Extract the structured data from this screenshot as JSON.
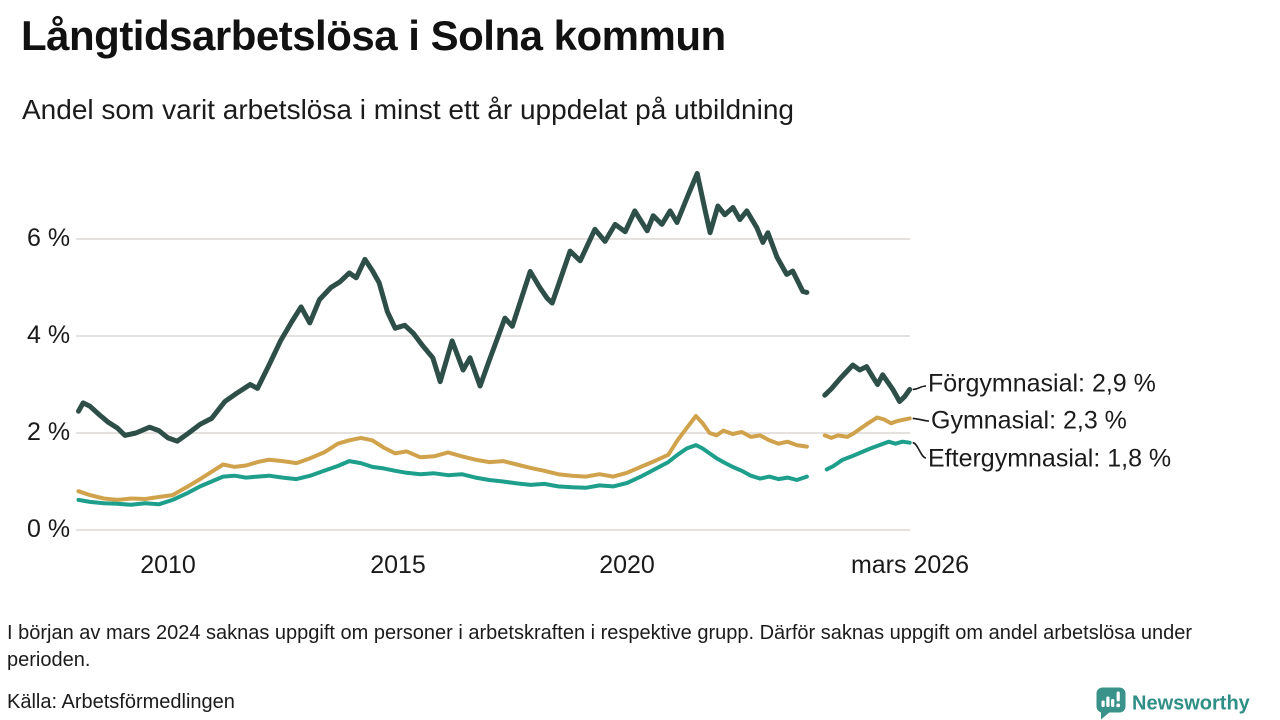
{
  "header": {
    "title": "Långtidsarbetslösa i Solna kommun",
    "subtitle": "Andel som varit arbetslösa i minst ett år uppdelat på utbildning"
  },
  "theme": {
    "background": "#ffffff",
    "text_color": "#1a1a1a",
    "gridline_color": "#e5e1de",
    "leader_line_color": "#1b1b1b",
    "brand_color": "#35918a"
  },
  "chart_data": {
    "type": "line",
    "title": "Långtidsarbetslösa i Solna kommun",
    "subtitle": "Andel som varit arbetslösa i minst ett år uppdelat på utbildning",
    "unit": "%",
    "grid": "horizontal-only",
    "y_axis": {
      "range": [
        0,
        7.5
      ],
      "ticks": [
        {
          "value": 0,
          "label": "0 %"
        },
        {
          "value": 2,
          "label": "2 %"
        },
        {
          "value": 4,
          "label": "4 %"
        },
        {
          "value": 6,
          "label": "6 %"
        }
      ]
    },
    "x_axis": {
      "range_years": [
        2008.0,
        2026.17
      ],
      "ticks": [
        {
          "year": 2010,
          "label": "2010"
        },
        {
          "year": 2015,
          "label": "2015"
        },
        {
          "year": 2020,
          "label": "2020"
        },
        {
          "year": 2026.17,
          "label": "mars 2026"
        }
      ]
    },
    "data_gap_years": [
      2023.92,
      2024.31
    ],
    "series": [
      {
        "name": "Förgymnasial",
        "color": "#2d4f47",
        "latest_value": "2,9 %",
        "end_label": "Förgymnasial: 2,9 %",
        "points_pre_gap": [
          [
            2008.05,
            2.45
          ],
          [
            2008.15,
            2.62
          ],
          [
            2008.3,
            2.55
          ],
          [
            2008.5,
            2.38
          ],
          [
            2008.7,
            2.22
          ],
          [
            2008.9,
            2.1
          ],
          [
            2009.06,
            1.95
          ],
          [
            2009.3,
            2.0
          ],
          [
            2009.6,
            2.12
          ],
          [
            2009.8,
            2.05
          ],
          [
            2010.0,
            1.9
          ],
          [
            2010.2,
            1.83
          ],
          [
            2010.45,
            2.0
          ],
          [
            2010.7,
            2.18
          ],
          [
            2010.95,
            2.3
          ],
          [
            2011.24,
            2.65
          ],
          [
            2011.5,
            2.82
          ],
          [
            2011.79,
            3.0
          ],
          [
            2011.95,
            2.92
          ],
          [
            2012.2,
            3.4
          ],
          [
            2012.45,
            3.9
          ],
          [
            2012.7,
            4.3
          ],
          [
            2012.9,
            4.6
          ],
          [
            2013.09,
            4.27
          ],
          [
            2013.3,
            4.75
          ],
          [
            2013.55,
            5.0
          ],
          [
            2013.75,
            5.12
          ],
          [
            2013.95,
            5.3
          ],
          [
            2014.1,
            5.2
          ],
          [
            2014.29,
            5.58
          ],
          [
            2014.45,
            5.35
          ],
          [
            2014.6,
            5.1
          ],
          [
            2014.78,
            4.5
          ],
          [
            2014.95,
            4.16
          ],
          [
            2015.16,
            4.22
          ],
          [
            2015.35,
            4.05
          ],
          [
            2015.55,
            3.8
          ],
          [
            2015.77,
            3.55
          ],
          [
            2015.93,
            3.06
          ],
          [
            2016.19,
            3.9
          ],
          [
            2016.43,
            3.3
          ],
          [
            2016.58,
            3.55
          ],
          [
            2016.8,
            2.97
          ],
          [
            2017.0,
            3.5
          ],
          [
            2017.34,
            4.37
          ],
          [
            2017.5,
            4.2
          ],
          [
            2017.89,
            5.33
          ],
          [
            2018.1,
            5.0
          ],
          [
            2018.26,
            4.78
          ],
          [
            2018.37,
            4.68
          ],
          [
            2018.76,
            5.75
          ],
          [
            2018.98,
            5.55
          ],
          [
            2019.3,
            6.2
          ],
          [
            2019.52,
            5.95
          ],
          [
            2019.74,
            6.3
          ],
          [
            2019.96,
            6.15
          ],
          [
            2020.17,
            6.58
          ],
          [
            2020.44,
            6.17
          ],
          [
            2020.57,
            6.48
          ],
          [
            2020.76,
            6.3
          ],
          [
            2020.94,
            6.58
          ],
          [
            2021.09,
            6.34
          ],
          [
            2021.33,
            6.9
          ],
          [
            2021.53,
            7.35
          ],
          [
            2021.7,
            6.6
          ],
          [
            2021.81,
            6.13
          ],
          [
            2021.98,
            6.68
          ],
          [
            2022.13,
            6.5
          ],
          [
            2022.31,
            6.65
          ],
          [
            2022.46,
            6.4
          ],
          [
            2022.61,
            6.58
          ],
          [
            2022.83,
            6.23
          ],
          [
            2022.96,
            5.93
          ],
          [
            2023.07,
            6.13
          ],
          [
            2023.27,
            5.62
          ],
          [
            2023.48,
            5.27
          ],
          [
            2023.61,
            5.34
          ],
          [
            2023.83,
            4.92
          ],
          [
            2023.92,
            4.9
          ]
        ],
        "points_post_gap": [
          [
            2024.31,
            2.78
          ],
          [
            2024.46,
            2.92
          ],
          [
            2024.64,
            3.12
          ],
          [
            2024.79,
            3.27
          ],
          [
            2024.92,
            3.4
          ],
          [
            2025.07,
            3.3
          ],
          [
            2025.22,
            3.37
          ],
          [
            2025.35,
            3.16
          ],
          [
            2025.46,
            3.0
          ],
          [
            2025.57,
            3.2
          ],
          [
            2025.79,
            2.9
          ],
          [
            2025.94,
            2.65
          ],
          [
            2026.05,
            2.75
          ],
          [
            2026.16,
            2.9
          ]
        ]
      },
      {
        "name": "Gymnasial",
        "color": "#d0a24c",
        "latest_value": "2,3 %",
        "end_label": "Gymnasial: 2,3 %",
        "points_pre_gap": [
          [
            2008.05,
            0.8
          ],
          [
            2008.3,
            0.72
          ],
          [
            2008.6,
            0.65
          ],
          [
            2008.9,
            0.62
          ],
          [
            2009.2,
            0.65
          ],
          [
            2009.5,
            0.64
          ],
          [
            2009.8,
            0.68
          ],
          [
            2010.1,
            0.72
          ],
          [
            2010.4,
            0.88
          ],
          [
            2010.7,
            1.05
          ],
          [
            2010.95,
            1.2
          ],
          [
            2011.2,
            1.35
          ],
          [
            2011.45,
            1.3
          ],
          [
            2011.7,
            1.33
          ],
          [
            2011.95,
            1.4
          ],
          [
            2012.2,
            1.45
          ],
          [
            2012.5,
            1.42
          ],
          [
            2012.8,
            1.38
          ],
          [
            2013.1,
            1.48
          ],
          [
            2013.4,
            1.6
          ],
          [
            2013.7,
            1.78
          ],
          [
            2013.95,
            1.85
          ],
          [
            2014.2,
            1.9
          ],
          [
            2014.45,
            1.85
          ],
          [
            2014.7,
            1.7
          ],
          [
            2014.95,
            1.58
          ],
          [
            2015.2,
            1.62
          ],
          [
            2015.5,
            1.5
          ],
          [
            2015.8,
            1.52
          ],
          [
            2016.1,
            1.6
          ],
          [
            2016.4,
            1.52
          ],
          [
            2016.7,
            1.45
          ],
          [
            2017.0,
            1.4
          ],
          [
            2017.3,
            1.42
          ],
          [
            2017.6,
            1.35
          ],
          [
            2017.9,
            1.28
          ],
          [
            2018.2,
            1.22
          ],
          [
            2018.5,
            1.15
          ],
          [
            2018.8,
            1.12
          ],
          [
            2019.1,
            1.1
          ],
          [
            2019.4,
            1.15
          ],
          [
            2019.7,
            1.1
          ],
          [
            2020.0,
            1.18
          ],
          [
            2020.3,
            1.3
          ],
          [
            2020.6,
            1.42
          ],
          [
            2020.9,
            1.55
          ],
          [
            2021.1,
            1.85
          ],
          [
            2021.3,
            2.1
          ],
          [
            2021.5,
            2.35
          ],
          [
            2021.65,
            2.2
          ],
          [
            2021.8,
            2.0
          ],
          [
            2021.95,
            1.95
          ],
          [
            2022.1,
            2.05
          ],
          [
            2022.3,
            1.98
          ],
          [
            2022.5,
            2.02
          ],
          [
            2022.7,
            1.92
          ],
          [
            2022.9,
            1.95
          ],
          [
            2023.1,
            1.85
          ],
          [
            2023.3,
            1.78
          ],
          [
            2023.5,
            1.82
          ],
          [
            2023.7,
            1.75
          ],
          [
            2023.92,
            1.72
          ]
        ],
        "points_post_gap": [
          [
            2024.31,
            1.95
          ],
          [
            2024.45,
            1.9
          ],
          [
            2024.6,
            1.95
          ],
          [
            2024.8,
            1.92
          ],
          [
            2024.95,
            2.0
          ],
          [
            2025.1,
            2.1
          ],
          [
            2025.25,
            2.2
          ],
          [
            2025.45,
            2.32
          ],
          [
            2025.6,
            2.28
          ],
          [
            2025.75,
            2.2
          ],
          [
            2025.9,
            2.25
          ],
          [
            2026.05,
            2.28
          ],
          [
            2026.16,
            2.3
          ]
        ]
      },
      {
        "name": "Eftergymnasial",
        "color": "#1d9f8c",
        "latest_value": "1,8 %",
        "end_label": "Eftergymnasial: 1,8 %",
        "points_pre_gap": [
          [
            2008.05,
            0.62
          ],
          [
            2008.3,
            0.58
          ],
          [
            2008.6,
            0.55
          ],
          [
            2008.9,
            0.54
          ],
          [
            2009.2,
            0.52
          ],
          [
            2009.5,
            0.55
          ],
          [
            2009.8,
            0.53
          ],
          [
            2010.1,
            0.62
          ],
          [
            2010.4,
            0.75
          ],
          [
            2010.7,
            0.9
          ],
          [
            2010.95,
            1.0
          ],
          [
            2011.2,
            1.1
          ],
          [
            2011.45,
            1.12
          ],
          [
            2011.7,
            1.08
          ],
          [
            2011.95,
            1.1
          ],
          [
            2012.2,
            1.12
          ],
          [
            2012.5,
            1.08
          ],
          [
            2012.8,
            1.05
          ],
          [
            2013.1,
            1.12
          ],
          [
            2013.4,
            1.22
          ],
          [
            2013.7,
            1.32
          ],
          [
            2013.95,
            1.42
          ],
          [
            2014.2,
            1.38
          ],
          [
            2014.45,
            1.3
          ],
          [
            2014.7,
            1.27
          ],
          [
            2014.95,
            1.22
          ],
          [
            2015.2,
            1.18
          ],
          [
            2015.5,
            1.15
          ],
          [
            2015.8,
            1.17
          ],
          [
            2016.1,
            1.13
          ],
          [
            2016.4,
            1.15
          ],
          [
            2016.7,
            1.08
          ],
          [
            2017.0,
            1.03
          ],
          [
            2017.3,
            1.0
          ],
          [
            2017.6,
            0.96
          ],
          [
            2017.9,
            0.93
          ],
          [
            2018.2,
            0.95
          ],
          [
            2018.5,
            0.9
          ],
          [
            2018.8,
            0.88
          ],
          [
            2019.1,
            0.87
          ],
          [
            2019.4,
            0.92
          ],
          [
            2019.7,
            0.9
          ],
          [
            2020.0,
            0.97
          ],
          [
            2020.3,
            1.1
          ],
          [
            2020.6,
            1.25
          ],
          [
            2020.9,
            1.4
          ],
          [
            2021.1,
            1.55
          ],
          [
            2021.3,
            1.68
          ],
          [
            2021.5,
            1.75
          ],
          [
            2021.65,
            1.68
          ],
          [
            2021.8,
            1.58
          ],
          [
            2021.95,
            1.48
          ],
          [
            2022.1,
            1.4
          ],
          [
            2022.3,
            1.3
          ],
          [
            2022.5,
            1.22
          ],
          [
            2022.7,
            1.12
          ],
          [
            2022.9,
            1.06
          ],
          [
            2023.1,
            1.1
          ],
          [
            2023.3,
            1.05
          ],
          [
            2023.5,
            1.08
          ],
          [
            2023.7,
            1.03
          ],
          [
            2023.92,
            1.1
          ]
        ],
        "points_post_gap": [
          [
            2024.35,
            1.25
          ],
          [
            2024.5,
            1.32
          ],
          [
            2024.7,
            1.45
          ],
          [
            2024.9,
            1.52
          ],
          [
            2025.1,
            1.6
          ],
          [
            2025.3,
            1.68
          ],
          [
            2025.5,
            1.75
          ],
          [
            2025.7,
            1.82
          ],
          [
            2025.85,
            1.78
          ],
          [
            2026.0,
            1.82
          ],
          [
            2026.16,
            1.8
          ]
        ]
      }
    ]
  },
  "footnote": {
    "text": "I början av mars 2024 saknas uppgift om personer i arbetskraften i respektive grupp. Därför saknas uppgift om andel arbetslösa under perioden."
  },
  "source": {
    "text": "Källa: Arbetsförmedlingen"
  },
  "branding": {
    "name": "Newsworthy",
    "logo": "newsworthy-speech-bubble-bar-chart"
  }
}
